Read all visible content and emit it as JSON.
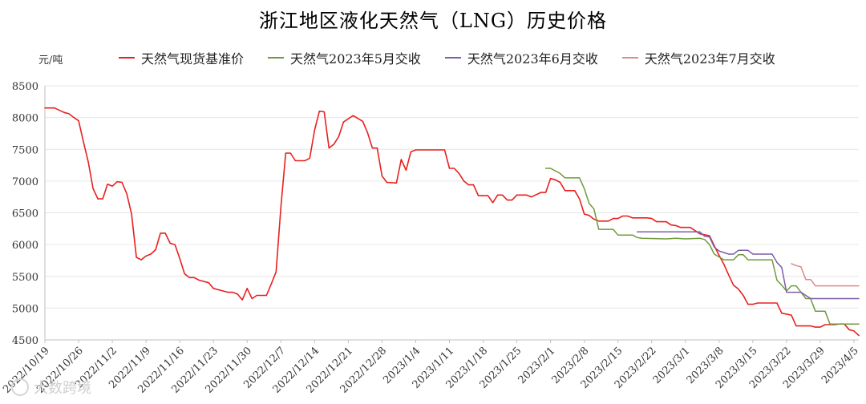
{
  "title": "浙江地区液化天然气（LNG）历史价格",
  "unit": "元/吨",
  "watermark": "大数跨境",
  "chart_data": {
    "type": "line",
    "y_ticks": [
      4500,
      5000,
      5500,
      6000,
      6500,
      7000,
      7500,
      8000,
      8500
    ],
    "ylim": [
      4500,
      8500
    ],
    "xlim": [
      "2022-10-19",
      "2023-04-06"
    ],
    "x_ticks": [
      "2022/10/19",
      "2022/10/26",
      "2022/11/2",
      "2022/11/9",
      "2022/11/16",
      "2022/11/23",
      "2022/11/30",
      "2022/12/7",
      "2022/12/14",
      "2022/12/21",
      "2022/12/28",
      "2023/1/4",
      "2023/1/11",
      "2023/1/18",
      "2023/1/25",
      "2023/2/1",
      "2023/2/8",
      "2023/2/15",
      "2023/2/22",
      "2023/3/1",
      "2023/3/8",
      "2023/3/15",
      "2023/3/22",
      "2023/3/29",
      "2023/4/5"
    ],
    "grid": true,
    "legend_position": "top",
    "series": [
      {
        "name": "天然气现货基准价",
        "color": "#e8201f",
        "points": [
          [
            "2022-10-19",
            8150
          ],
          [
            "2022-10-21",
            8150
          ],
          [
            "2022-10-23",
            8080
          ],
          [
            "2022-10-24",
            8060
          ],
          [
            "2022-10-25",
            8000
          ],
          [
            "2022-10-26",
            7950
          ],
          [
            "2022-10-27",
            7620
          ],
          [
            "2022-10-28",
            7300
          ],
          [
            "2022-10-29",
            6880
          ],
          [
            "2022-10-30",
            6720
          ],
          [
            "2022-10-31",
            6720
          ],
          [
            "2022-11-01",
            6950
          ],
          [
            "2022-11-02",
            6920
          ],
          [
            "2022-11-03",
            6990
          ],
          [
            "2022-11-04",
            6980
          ],
          [
            "2022-11-05",
            6800
          ],
          [
            "2022-11-06",
            6480
          ],
          [
            "2022-11-07",
            5800
          ],
          [
            "2022-11-08",
            5760
          ],
          [
            "2022-11-09",
            5820
          ],
          [
            "2022-11-10",
            5850
          ],
          [
            "2022-11-11",
            5920
          ],
          [
            "2022-11-12",
            6180
          ],
          [
            "2022-11-13",
            6180
          ],
          [
            "2022-11-14",
            6020
          ],
          [
            "2022-11-15",
            6000
          ],
          [
            "2022-11-16",
            5780
          ],
          [
            "2022-11-17",
            5540
          ],
          [
            "2022-11-18",
            5480
          ],
          [
            "2022-11-19",
            5480
          ],
          [
            "2022-11-20",
            5440
          ],
          [
            "2022-11-22",
            5400
          ],
          [
            "2022-11-23",
            5310
          ],
          [
            "2022-11-25",
            5270
          ],
          [
            "2022-11-26",
            5250
          ],
          [
            "2022-11-27",
            5250
          ],
          [
            "2022-11-28",
            5220
          ],
          [
            "2022-11-29",
            5130
          ],
          [
            "2022-11-30",
            5310
          ],
          [
            "2022-12-01",
            5150
          ],
          [
            "2022-12-02",
            5200
          ],
          [
            "2022-12-04",
            5200
          ],
          [
            "2022-12-05",
            5380
          ],
          [
            "2022-12-06",
            5570
          ],
          [
            "2022-12-07",
            6590
          ],
          [
            "2022-12-08",
            7440
          ],
          [
            "2022-12-09",
            7440
          ],
          [
            "2022-12-10",
            7320
          ],
          [
            "2022-12-12",
            7320
          ],
          [
            "2022-12-13",
            7360
          ],
          [
            "2022-12-14",
            7800
          ],
          [
            "2022-12-15",
            8100
          ],
          [
            "2022-12-16",
            8090
          ],
          [
            "2022-12-17",
            7520
          ],
          [
            "2022-12-18",
            7580
          ],
          [
            "2022-12-19",
            7700
          ],
          [
            "2022-12-20",
            7930
          ],
          [
            "2022-12-22",
            8030
          ],
          [
            "2022-12-24",
            7940
          ],
          [
            "2022-12-25",
            7760
          ],
          [
            "2022-12-26",
            7520
          ],
          [
            "2022-12-27",
            7520
          ],
          [
            "2022-12-28",
            7080
          ],
          [
            "2022-12-29",
            6980
          ],
          [
            "2022-12-31",
            6970
          ],
          [
            "2023-01-01",
            7340
          ],
          [
            "2023-01-02",
            7170
          ],
          [
            "2023-01-03",
            7460
          ],
          [
            "2023-01-04",
            7490
          ],
          [
            "2023-01-10",
            7490
          ],
          [
            "2023-01-11",
            7200
          ],
          [
            "2023-01-12",
            7200
          ],
          [
            "2023-01-13",
            7120
          ],
          [
            "2023-01-14",
            7000
          ],
          [
            "2023-01-15",
            6940
          ],
          [
            "2023-01-16",
            6940
          ],
          [
            "2023-01-17",
            6770
          ],
          [
            "2023-01-19",
            6770
          ],
          [
            "2023-01-20",
            6660
          ],
          [
            "2023-01-21",
            6780
          ],
          [
            "2023-01-22",
            6780
          ],
          [
            "2023-01-23",
            6700
          ],
          [
            "2023-01-24",
            6700
          ],
          [
            "2023-01-25",
            6780
          ],
          [
            "2023-01-27",
            6780
          ],
          [
            "2023-01-28",
            6750
          ],
          [
            "2023-01-30",
            6820
          ],
          [
            "2023-01-31",
            6820
          ],
          [
            "2023-02-01",
            7040
          ],
          [
            "2023-02-02",
            7020
          ],
          [
            "2023-02-03",
            6980
          ],
          [
            "2023-02-04",
            6850
          ],
          [
            "2023-02-06",
            6850
          ],
          [
            "2023-02-07",
            6720
          ],
          [
            "2023-02-08",
            6480
          ],
          [
            "2023-02-09",
            6460
          ],
          [
            "2023-02-10",
            6400
          ],
          [
            "2023-02-11",
            6370
          ],
          [
            "2023-02-13",
            6370
          ],
          [
            "2023-02-14",
            6410
          ],
          [
            "2023-02-15",
            6410
          ],
          [
            "2023-02-16",
            6450
          ],
          [
            "2023-02-17",
            6450
          ],
          [
            "2023-02-18",
            6420
          ],
          [
            "2023-02-20",
            6420
          ],
          [
            "2023-02-21",
            6420
          ],
          [
            "2023-02-22",
            6410
          ],
          [
            "2023-02-23",
            6360
          ],
          [
            "2023-02-25",
            6360
          ],
          [
            "2023-02-26",
            6310
          ],
          [
            "2023-02-27",
            6300
          ],
          [
            "2023-02-28",
            6270
          ],
          [
            "2023-03-02",
            6270
          ],
          [
            "2023-03-04",
            6170
          ],
          [
            "2023-03-06",
            6140
          ],
          [
            "2023-03-07",
            5980
          ],
          [
            "2023-03-08",
            5830
          ],
          [
            "2023-03-09",
            5690
          ],
          [
            "2023-03-10",
            5520
          ],
          [
            "2023-03-11",
            5360
          ],
          [
            "2023-03-12",
            5300
          ],
          [
            "2023-03-13",
            5200
          ],
          [
            "2023-03-14",
            5060
          ],
          [
            "2023-03-15",
            5060
          ],
          [
            "2023-03-16",
            5080
          ],
          [
            "2023-03-20",
            5080
          ],
          [
            "2023-03-21",
            4920
          ],
          [
            "2023-03-23",
            4890
          ],
          [
            "2023-03-24",
            4720
          ],
          [
            "2023-03-27",
            4720
          ],
          [
            "2023-03-28",
            4700
          ],
          [
            "2023-03-29",
            4700
          ],
          [
            "2023-03-30",
            4740
          ],
          [
            "2023-04-01",
            4740
          ],
          [
            "2023-04-02",
            4750
          ],
          [
            "2023-04-03",
            4750
          ],
          [
            "2023-04-04",
            4660
          ],
          [
            "2023-04-05",
            4640
          ],
          [
            "2023-04-06",
            4570
          ]
        ]
      },
      {
        "name": "天然气2023年5月交收",
        "color": "#6f9a3c",
        "points": [
          [
            "2023-01-31",
            7200
          ],
          [
            "2023-02-01",
            7200
          ],
          [
            "2023-02-03",
            7120
          ],
          [
            "2023-02-04",
            7050
          ],
          [
            "2023-02-07",
            7050
          ],
          [
            "2023-02-08",
            6880
          ],
          [
            "2023-02-09",
            6650
          ],
          [
            "2023-02-10",
            6560
          ],
          [
            "2023-02-11",
            6240
          ],
          [
            "2023-02-14",
            6240
          ],
          [
            "2023-02-15",
            6150
          ],
          [
            "2023-02-18",
            6150
          ],
          [
            "2023-02-19",
            6110
          ],
          [
            "2023-02-20",
            6100
          ],
          [
            "2023-02-25",
            6090
          ],
          [
            "2023-02-27",
            6100
          ],
          [
            "2023-03-01",
            6090
          ],
          [
            "2023-03-04",
            6100
          ],
          [
            "2023-03-05",
            6080
          ],
          [
            "2023-03-06",
            6000
          ],
          [
            "2023-03-07",
            5850
          ],
          [
            "2023-03-09",
            5760
          ],
          [
            "2023-03-11",
            5760
          ],
          [
            "2023-03-12",
            5840
          ],
          [
            "2023-03-13",
            5840
          ],
          [
            "2023-03-14",
            5760
          ],
          [
            "2023-03-19",
            5760
          ],
          [
            "2023-03-20",
            5440
          ],
          [
            "2023-03-21",
            5360
          ],
          [
            "2023-03-22",
            5270
          ],
          [
            "2023-03-23",
            5350
          ],
          [
            "2023-03-24",
            5350
          ],
          [
            "2023-03-25",
            5250
          ],
          [
            "2023-03-26",
            5150
          ],
          [
            "2023-03-27",
            5150
          ],
          [
            "2023-03-28",
            4950
          ],
          [
            "2023-03-30",
            4950
          ],
          [
            "2023-03-31",
            4750
          ],
          [
            "2023-04-06",
            4750
          ]
        ]
      },
      {
        "name": "天然气2023年6月交收",
        "color": "#7b5fa8",
        "points": [
          [
            "2023-02-19",
            6200
          ],
          [
            "2023-02-25",
            6200
          ],
          [
            "2023-03-04",
            6200
          ],
          [
            "2023-03-05",
            6130
          ],
          [
            "2023-03-06",
            6120
          ],
          [
            "2023-03-07",
            5960
          ],
          [
            "2023-03-08",
            5900
          ],
          [
            "2023-03-10",
            5850
          ],
          [
            "2023-03-11",
            5850
          ],
          [
            "2023-03-12",
            5910
          ],
          [
            "2023-03-14",
            5910
          ],
          [
            "2023-03-15",
            5850
          ],
          [
            "2023-03-19",
            5850
          ],
          [
            "2023-03-20",
            5720
          ],
          [
            "2023-03-21",
            5640
          ],
          [
            "2023-03-22",
            5250
          ],
          [
            "2023-03-24",
            5250
          ],
          [
            "2023-03-25",
            5250
          ],
          [
            "2023-03-27",
            5150
          ],
          [
            "2023-04-06",
            5150
          ]
        ]
      },
      {
        "name": "天然气2023年7月交收",
        "color": "#d98c8c",
        "points": [
          [
            "2023-03-23",
            5700
          ],
          [
            "2023-03-24",
            5670
          ],
          [
            "2023-03-25",
            5650
          ],
          [
            "2023-03-26",
            5450
          ],
          [
            "2023-03-27",
            5450
          ],
          [
            "2023-03-28",
            5350
          ],
          [
            "2023-04-06",
            5350
          ]
        ]
      }
    ]
  }
}
